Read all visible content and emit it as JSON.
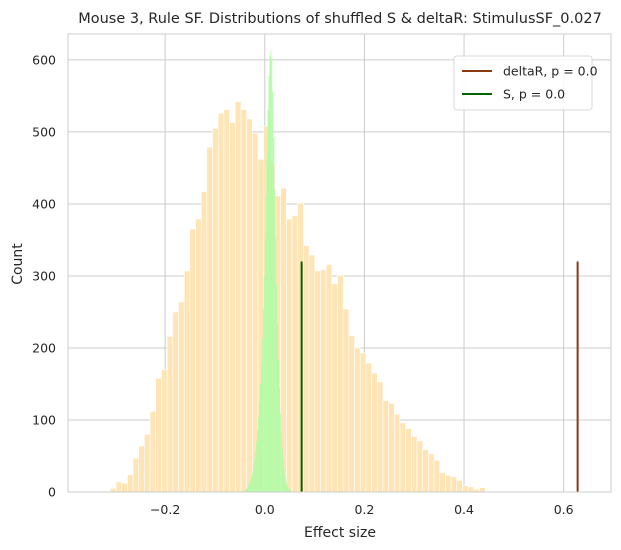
{
  "chart_data": {
    "type": "bar",
    "title": "Mouse 3, Rule SF. Distributions of shuffled S & deltaR: StimulusSF_0.027",
    "xlabel": "Effect size",
    "ylabel": "Count",
    "xlim": [
      -0.395,
      0.695
    ],
    "ylim": [
      0,
      636
    ],
    "xticks": [
      -0.2,
      0.0,
      0.2,
      0.4,
      0.6
    ],
    "xtick_labels": [
      "−0.2",
      "0.0",
      "0.2",
      "0.4",
      "0.6"
    ],
    "yticks": [
      0,
      100,
      200,
      300,
      400,
      500,
      600
    ],
    "ytick_labels": [
      "0",
      "100",
      "200",
      "300",
      "400",
      "500",
      "600"
    ],
    "grid": true,
    "legend_position": "top-right",
    "series": [
      {
        "kind": "histogram",
        "color": "#ffe4b5",
        "bin_edges_start": -0.31,
        "bin_width": 0.0114,
        "counts": [
          5,
          14,
          12,
          24,
          47,
          64,
          80,
          112,
          158,
          170,
          216,
          250,
          264,
          307,
          365,
          379,
          417,
          479,
          505,
          526,
          531,
          513,
          542,
          531,
          518,
          498,
          462,
          508,
          455,
          411,
          422,
          379,
          384,
          401,
          342,
          329,
          307,
          309,
          316,
          289,
          301,
          254,
          217,
          200,
          193,
          179,
          165,
          153,
          127,
          123,
          108,
          96,
          88,
          77,
          71,
          59,
          53,
          44,
          27,
          23,
          21,
          16,
          9,
          7,
          4,
          6
        ]
      },
      {
        "kind": "histogram",
        "color": "#b3fba7",
        "bin_edges_start": -0.04,
        "bin_width": 0.0019,
        "counts": [
          3,
          4,
          6,
          8,
          11,
          14,
          18,
          23,
          29,
          37,
          46,
          57,
          70,
          86,
          104,
          125,
          150,
          180,
          214,
          254,
          300,
          352,
          410,
          470,
          530,
          578,
          605,
          612,
          600,
          556,
          492,
          420,
          352,
          289,
          233,
          184,
          143,
          109,
          82,
          60,
          44,
          32,
          22,
          15,
          10,
          7,
          5,
          3
        ]
      },
      {
        "name": "deltaR, p = 0.0",
        "kind": "vline",
        "x": 0.628,
        "y_max": 320,
        "color": "#8b3a0f"
      },
      {
        "name": "S, p = 0.0",
        "kind": "vline",
        "x": 0.074,
        "y_max": 320,
        "color": "#006400"
      }
    ]
  }
}
